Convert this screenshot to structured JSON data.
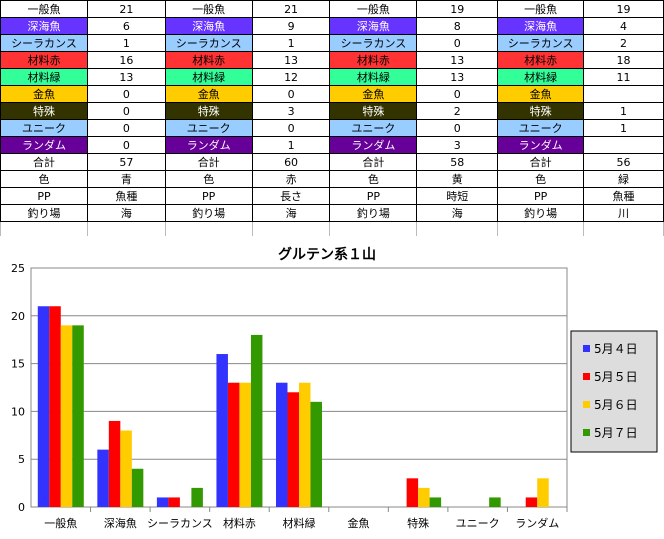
{
  "table": {
    "columns_per_block": 2,
    "blocks": [
      {
        "rows": [
          {
            "label": "一般魚",
            "value": "21",
            "bg": "#ffffff",
            "fg": "#000000"
          },
          {
            "label": "深海魚",
            "value": "6",
            "bg": "#6633ff",
            "fg": "#ffffff"
          },
          {
            "label": "シーラカンス",
            "value": "1",
            "bg": "#99ccff",
            "fg": "#000000"
          },
          {
            "label": "材料赤",
            "value": "16",
            "bg": "#ff3333",
            "fg": "#000000"
          },
          {
            "label": "材料緑",
            "value": "13",
            "bg": "#33ff99",
            "fg": "#000000"
          },
          {
            "label": "金魚",
            "value": "0",
            "bg": "#ffcc00",
            "fg": "#000000"
          },
          {
            "label": "特殊",
            "value": "0",
            "bg": "#333300",
            "fg": "#ffffff"
          },
          {
            "label": "ユニーク",
            "value": "0",
            "bg": "#99ccff",
            "fg": "#000000"
          },
          {
            "label": "ランダム",
            "value": "0",
            "bg": "#660099",
            "fg": "#ffffff"
          },
          {
            "label": "合計",
            "value": "57",
            "bg": "#ffffff",
            "fg": "#000000"
          },
          {
            "label": "色",
            "value": "青",
            "bg": "#ffffff",
            "fg": "#000000"
          },
          {
            "label": "PP",
            "value": "魚種",
            "bg": "#ffffff",
            "fg": "#000000"
          },
          {
            "label": "釣り場",
            "value": "海",
            "bg": "#ffffff",
            "fg": "#000000"
          }
        ]
      },
      {
        "rows": [
          {
            "label": "一般魚",
            "value": "21",
            "bg": "#ffffff",
            "fg": "#000000"
          },
          {
            "label": "深海魚",
            "value": "9",
            "bg": "#6633ff",
            "fg": "#ffffff"
          },
          {
            "label": "シーラカンス",
            "value": "1",
            "bg": "#99ccff",
            "fg": "#000000"
          },
          {
            "label": "材料赤",
            "value": "13",
            "bg": "#ff3333",
            "fg": "#000000"
          },
          {
            "label": "材料緑",
            "value": "12",
            "bg": "#33ff99",
            "fg": "#000000"
          },
          {
            "label": "金魚",
            "value": "0",
            "bg": "#ffcc00",
            "fg": "#000000"
          },
          {
            "label": "特殊",
            "value": "3",
            "bg": "#333300",
            "fg": "#ffffff"
          },
          {
            "label": "ユニーク",
            "value": "0",
            "bg": "#99ccff",
            "fg": "#000000"
          },
          {
            "label": "ランダム",
            "value": "1",
            "bg": "#660099",
            "fg": "#ffffff"
          },
          {
            "label": "合計",
            "value": "60",
            "bg": "#ffffff",
            "fg": "#000000"
          },
          {
            "label": "色",
            "value": "赤",
            "bg": "#ffffff",
            "fg": "#000000"
          },
          {
            "label": "PP",
            "value": "長さ",
            "bg": "#ffffff",
            "fg": "#000000"
          },
          {
            "label": "釣り場",
            "value": "海",
            "bg": "#ffffff",
            "fg": "#000000"
          }
        ]
      },
      {
        "rows": [
          {
            "label": "一般魚",
            "value": "19",
            "bg": "#ffffff",
            "fg": "#000000"
          },
          {
            "label": "深海魚",
            "value": "8",
            "bg": "#6633ff",
            "fg": "#ffffff"
          },
          {
            "label": "シーラカンス",
            "value": "0",
            "bg": "#99ccff",
            "fg": "#000000"
          },
          {
            "label": "材料赤",
            "value": "13",
            "bg": "#ff3333",
            "fg": "#000000"
          },
          {
            "label": "材料緑",
            "value": "13",
            "bg": "#33ff99",
            "fg": "#000000"
          },
          {
            "label": "金魚",
            "value": "0",
            "bg": "#ffcc00",
            "fg": "#000000"
          },
          {
            "label": "特殊",
            "value": "2",
            "bg": "#333300",
            "fg": "#ffffff"
          },
          {
            "label": "ユニーク",
            "value": "0",
            "bg": "#99ccff",
            "fg": "#000000"
          },
          {
            "label": "ランダム",
            "value": "3",
            "bg": "#660099",
            "fg": "#ffffff"
          },
          {
            "label": "合計",
            "value": "58",
            "bg": "#ffffff",
            "fg": "#000000"
          },
          {
            "label": "色",
            "value": "黄",
            "bg": "#ffffff",
            "fg": "#000000"
          },
          {
            "label": "PP",
            "value": "時短",
            "bg": "#ffffff",
            "fg": "#000000"
          },
          {
            "label": "釣り場",
            "value": "海",
            "bg": "#ffffff",
            "fg": "#000000"
          }
        ]
      },
      {
        "rows": [
          {
            "label": "一般魚",
            "value": "19",
            "bg": "#ffffff",
            "fg": "#000000"
          },
          {
            "label": "深海魚",
            "value": "4",
            "bg": "#6633ff",
            "fg": "#ffffff"
          },
          {
            "label": "シーラカンス",
            "value": "2",
            "bg": "#99ccff",
            "fg": "#000000"
          },
          {
            "label": "材料赤",
            "value": "18",
            "bg": "#ff3333",
            "fg": "#000000"
          },
          {
            "label": "材料緑",
            "value": "11",
            "bg": "#33ff99",
            "fg": "#000000"
          },
          {
            "label": "金魚",
            "value": "",
            "bg": "#ffcc00",
            "fg": "#000000"
          },
          {
            "label": "特殊",
            "value": "1",
            "bg": "#333300",
            "fg": "#ffffff"
          },
          {
            "label": "ユニーク",
            "value": "1",
            "bg": "#99ccff",
            "fg": "#000000"
          },
          {
            "label": "ランダム",
            "value": "",
            "bg": "#660099",
            "fg": "#ffffff"
          },
          {
            "label": "合計",
            "value": "56",
            "bg": "#ffffff",
            "fg": "#000000"
          },
          {
            "label": "色",
            "value": "緑",
            "bg": "#ffffff",
            "fg": "#000000"
          },
          {
            "label": "PP",
            "value": "魚種",
            "bg": "#ffffff",
            "fg": "#000000"
          },
          {
            "label": "釣り場",
            "value": "川",
            "bg": "#ffffff",
            "fg": "#000000"
          }
        ]
      }
    ]
  },
  "chart_data": {
    "type": "bar",
    "title": "グルテン系１山",
    "categories": [
      "一般魚",
      "深海魚",
      "シーラカンス",
      "材料赤",
      "材料緑",
      "金魚",
      "特殊",
      "ユニーク",
      "ランダム"
    ],
    "series": [
      {
        "name": "5月４日",
        "color": "#3333ff",
        "values": [
          21,
          6,
          1,
          16,
          13,
          0,
          0,
          0,
          0
        ]
      },
      {
        "name": "5月５日",
        "color": "#ff0000",
        "values": [
          21,
          9,
          1,
          13,
          12,
          0,
          3,
          0,
          1
        ]
      },
      {
        "name": "5月６日",
        "color": "#ffcc00",
        "values": [
          19,
          8,
          0,
          13,
          13,
          0,
          2,
          0,
          3
        ]
      },
      {
        "name": "5月７日",
        "color": "#339900",
        "values": [
          19,
          4,
          2,
          18,
          11,
          0,
          1,
          1,
          0
        ]
      }
    ],
    "ylim": [
      0,
      25
    ],
    "yticks": [
      0,
      5,
      10,
      15,
      20,
      25
    ],
    "grid": true,
    "legend_position": "right"
  }
}
